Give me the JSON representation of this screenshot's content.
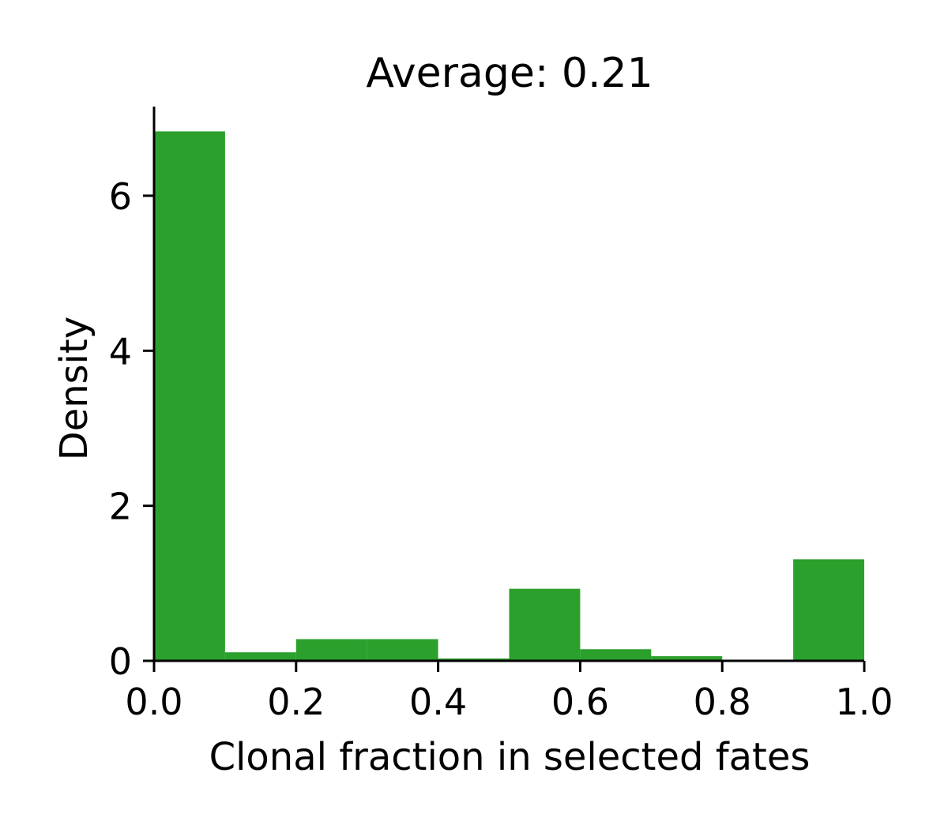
{
  "chart_data": {
    "type": "bar",
    "title": "Average: 0.21",
    "xlabel": "Clonal fraction in selected fates",
    "ylabel": "Density",
    "xlim": [
      0.0,
      1.0
    ],
    "ylim": [
      0,
      7.15
    ],
    "xticks": [
      "0.0",
      "0.2",
      "0.4",
      "0.6",
      "0.8",
      "1.0"
    ],
    "xtick_values": [
      0.0,
      0.2,
      0.4,
      0.6,
      0.8,
      1.0
    ],
    "yticks": [
      "0",
      "2",
      "4",
      "6"
    ],
    "ytick_values": [
      0,
      2,
      4,
      6
    ],
    "bins": [
      {
        "start": 0.0,
        "end": 0.1,
        "value": 6.83
      },
      {
        "start": 0.1,
        "end": 0.2,
        "value": 0.11
      },
      {
        "start": 0.2,
        "end": 0.3,
        "value": 0.28
      },
      {
        "start": 0.3,
        "end": 0.4,
        "value": 0.28
      },
      {
        "start": 0.4,
        "end": 0.5,
        "value": 0.03
      },
      {
        "start": 0.5,
        "end": 0.6,
        "value": 0.93
      },
      {
        "start": 0.6,
        "end": 0.7,
        "value": 0.15
      },
      {
        "start": 0.7,
        "end": 0.8,
        "value": 0.06
      },
      {
        "start": 0.8,
        "end": 0.9,
        "value": 0.0
      },
      {
        "start": 0.9,
        "end": 1.0,
        "value": 1.31
      }
    ],
    "bar_color": "#2ca02c",
    "grid": false,
    "spines": [
      "left",
      "bottom"
    ]
  }
}
